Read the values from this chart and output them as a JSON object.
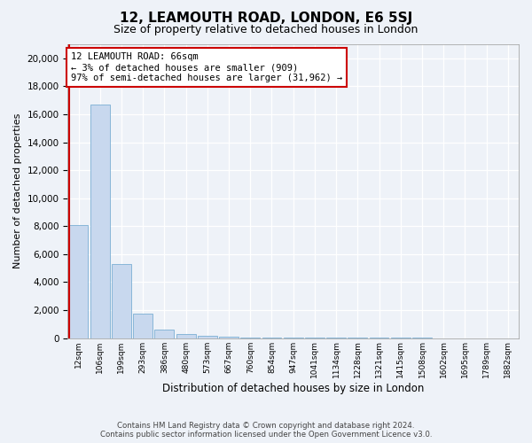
{
  "title": "12, LEAMOUTH ROAD, LONDON, E6 5SJ",
  "subtitle": "Size of property relative to detached houses in London",
  "xlabel": "Distribution of detached houses by size in London",
  "ylabel": "Number of detached properties",
  "bar_color": "#c8d8ee",
  "bar_edge_color": "#7bafd4",
  "annotation_line1": "12 LEAMOUTH ROAD: 66sqm",
  "annotation_line2": "← 3% of detached houses are smaller (909)",
  "annotation_line3": "97% of semi-detached houses are larger (31,962) →",
  "categories": [
    "12sqm",
    "106sqm",
    "199sqm",
    "293sqm",
    "386sqm",
    "480sqm",
    "573sqm",
    "667sqm",
    "760sqm",
    "854sqm",
    "947sqm",
    "1041sqm",
    "1134sqm",
    "1228sqm",
    "1321sqm",
    "1415sqm",
    "1508sqm",
    "1602sqm",
    "1695sqm",
    "1789sqm",
    "1882sqm"
  ],
  "values": [
    8100,
    16700,
    5300,
    1750,
    620,
    280,
    150,
    90,
    50,
    35,
    22,
    15,
    10,
    7,
    5,
    4,
    3,
    2,
    2,
    1,
    1
  ],
  "ylim": [
    0,
    21000
  ],
  "yticks": [
    0,
    2000,
    4000,
    6000,
    8000,
    10000,
    12000,
    14000,
    16000,
    18000,
    20000
  ],
  "footer1": "Contains HM Land Registry data © Crown copyright and database right 2024.",
  "footer2": "Contains public sector information licensed under the Open Government Licence v3.0.",
  "bg_color": "#eef2f8"
}
